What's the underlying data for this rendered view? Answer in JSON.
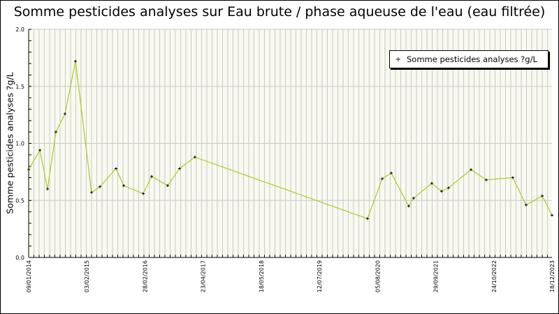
{
  "chart_data": {
    "type": "line",
    "title": "Somme pesticides analyses sur Eau brute / phase aqueuse de l'eau (eau filtrée)",
    "ylabel": "Somme pesticides analyses ?g/L",
    "xlabel": "",
    "ylim": [
      0,
      2.0
    ],
    "xlim": [
      "2014-01-09",
      "2023-12-18"
    ],
    "y_ticks": [
      "0.0",
      "0.5",
      "1.0",
      "1.5",
      "2.0"
    ],
    "x_ticks": [
      "09/01/2014",
      "03/02/2015",
      "28/02/2016",
      "23/04/2017",
      "18/05/2018",
      "12/07/2019",
      "05/08/2020",
      "29/09/2021",
      "24/10/2022",
      "18/12/2023"
    ],
    "grid": true,
    "legend_position": "top-right",
    "line_color": "#a8cc1c",
    "plot_background": "#f9f9f0",
    "series": [
      {
        "name": "Somme pesticides analyses ?g/L",
        "x": [
          "2014-01-09",
          "2014-03-28",
          "2014-05-20",
          "2014-07-17",
          "2014-09-18",
          "2014-11-30",
          "2015-03-21",
          "2015-05-18",
          "2015-09-07",
          "2015-10-30",
          "2016-03-14",
          "2016-05-11",
          "2016-08-30",
          "2016-11-21",
          "2017-03-07",
          "2020-06-16",
          "2020-09-26",
          "2020-11-28",
          "2021-03-29",
          "2021-05-02",
          "2021-09-05",
          "2021-11-12",
          "2021-12-30",
          "2022-06-04",
          "2022-09-18",
          "2023-03-21",
          "2023-06-21",
          "2023-10-11",
          "2023-12-18"
        ],
        "y": [
          0.77,
          0.94,
          0.6,
          1.1,
          1.26,
          1.72,
          0.57,
          0.62,
          0.78,
          0.63,
          0.56,
          0.71,
          0.63,
          0.78,
          0.88,
          0.34,
          0.69,
          0.74,
          0.45,
          0.52,
          0.65,
          0.58,
          0.61,
          0.77,
          0.68,
          0.7,
          0.46,
          0.54,
          0.37
        ]
      }
    ]
  }
}
